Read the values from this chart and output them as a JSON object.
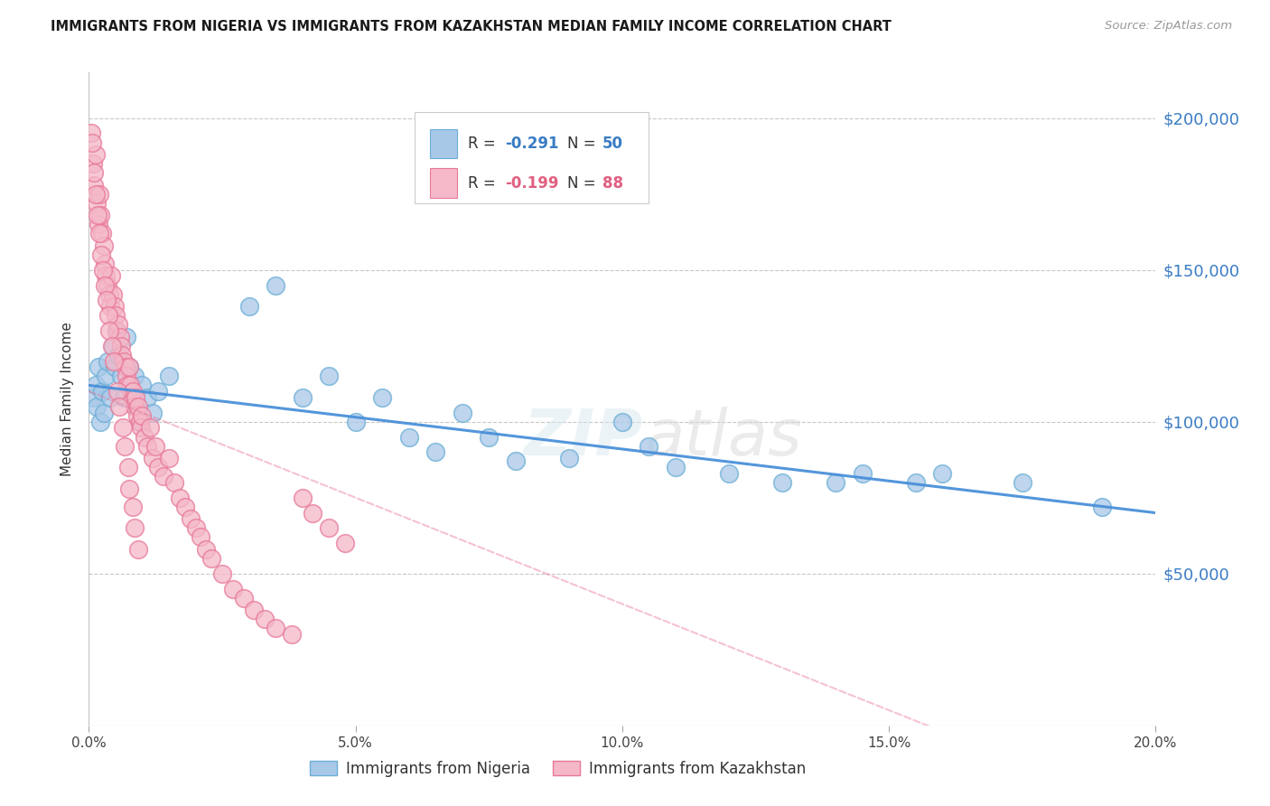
{
  "title": "IMMIGRANTS FROM NIGERIA VS IMMIGRANTS FROM KAZAKHSTAN MEDIAN FAMILY INCOME CORRELATION CHART",
  "source": "Source: ZipAtlas.com",
  "ylabel": "Median Family Income",
  "nigeria_color": "#a8c8e8",
  "nigeria_edge": "#6baed6",
  "nigeria_line_color": "#4a90d9",
  "kazakhstan_color": "#f4b8c8",
  "kazakhstan_edge": "#e87898",
  "kazakhstan_line_color": "#e87898",
  "nigeria_R": -0.291,
  "nigeria_N": 50,
  "kazakhstan_R": -0.199,
  "kazakhstan_N": 88,
  "nigeria_x": [
    0.0008,
    0.0012,
    0.0015,
    0.0018,
    0.0022,
    0.0025,
    0.0028,
    0.0032,
    0.0035,
    0.004,
    0.0045,
    0.0048,
    0.0052,
    0.0055,
    0.006,
    0.0065,
    0.007,
    0.0075,
    0.008,
    0.0085,
    0.009,
    0.0095,
    0.01,
    0.011,
    0.012,
    0.013,
    0.015,
    0.03,
    0.035,
    0.04,
    0.045,
    0.05,
    0.055,
    0.06,
    0.065,
    0.07,
    0.075,
    0.08,
    0.09,
    0.1,
    0.105,
    0.11,
    0.12,
    0.13,
    0.14,
    0.145,
    0.155,
    0.16,
    0.175,
    0.19
  ],
  "nigeria_y": [
    108000,
    112000,
    105000,
    118000,
    100000,
    110000,
    103000,
    115000,
    120000,
    108000,
    125000,
    118000,
    130000,
    122000,
    115000,
    108000,
    128000,
    118000,
    110000,
    115000,
    105000,
    100000,
    112000,
    108000,
    103000,
    110000,
    115000,
    138000,
    145000,
    108000,
    115000,
    100000,
    108000,
    95000,
    90000,
    103000,
    95000,
    87000,
    88000,
    100000,
    92000,
    85000,
    83000,
    80000,
    80000,
    83000,
    80000,
    83000,
    80000,
    72000
  ],
  "kazakhstan_x": [
    0.0005,
    0.0008,
    0.001,
    0.0012,
    0.0015,
    0.0018,
    0.002,
    0.0022,
    0.0025,
    0.0028,
    0.003,
    0.0032,
    0.0035,
    0.0038,
    0.004,
    0.0042,
    0.0045,
    0.0048,
    0.005,
    0.0052,
    0.0055,
    0.0058,
    0.006,
    0.0062,
    0.0065,
    0.0068,
    0.007,
    0.0072,
    0.0075,
    0.0078,
    0.008,
    0.0082,
    0.0085,
    0.0088,
    0.009,
    0.0092,
    0.0095,
    0.0098,
    0.01,
    0.0105,
    0.011,
    0.0115,
    0.012,
    0.0125,
    0.013,
    0.014,
    0.015,
    0.016,
    0.017,
    0.018,
    0.019,
    0.02,
    0.021,
    0.022,
    0.023,
    0.025,
    0.027,
    0.029,
    0.031,
    0.033,
    0.035,
    0.038,
    0.04,
    0.042,
    0.045,
    0.048,
    0.0006,
    0.0009,
    0.0013,
    0.0016,
    0.0019,
    0.0023,
    0.0026,
    0.0029,
    0.0033,
    0.0036,
    0.0039,
    0.0043,
    0.0046,
    0.0053,
    0.0057,
    0.0063,
    0.0067,
    0.0073,
    0.0076,
    0.0083,
    0.0086,
    0.0093
  ],
  "kazakhstan_y": [
    195000,
    185000,
    178000,
    188000,
    172000,
    165000,
    175000,
    168000,
    162000,
    158000,
    152000,
    148000,
    145000,
    142000,
    138000,
    148000,
    142000,
    138000,
    135000,
    130000,
    132000,
    128000,
    125000,
    122000,
    120000,
    118000,
    115000,
    112000,
    118000,
    112000,
    108000,
    110000,
    105000,
    108000,
    102000,
    105000,
    100000,
    98000,
    102000,
    95000,
    92000,
    98000,
    88000,
    92000,
    85000,
    82000,
    88000,
    80000,
    75000,
    72000,
    68000,
    65000,
    62000,
    58000,
    55000,
    50000,
    45000,
    42000,
    38000,
    35000,
    32000,
    30000,
    75000,
    70000,
    65000,
    60000,
    192000,
    182000,
    175000,
    168000,
    162000,
    155000,
    150000,
    145000,
    140000,
    135000,
    130000,
    125000,
    120000,
    110000,
    105000,
    98000,
    92000,
    85000,
    78000,
    72000,
    65000,
    58000
  ],
  "xlim": [
    0.0,
    0.2
  ],
  "ylim": [
    0,
    215000
  ],
  "yticks": [
    0,
    50000,
    100000,
    150000,
    200000
  ],
  "xticks": [
    0.0,
    0.05,
    0.1,
    0.15,
    0.2
  ],
  "xtick_labels": [
    "0.0%",
    "5.0%",
    "10.0%",
    "15.0%",
    "20.0%"
  ],
  "right_ytick_labels": [
    "",
    "$50,000",
    "$100,000",
    "$150,000",
    "$200,000"
  ]
}
